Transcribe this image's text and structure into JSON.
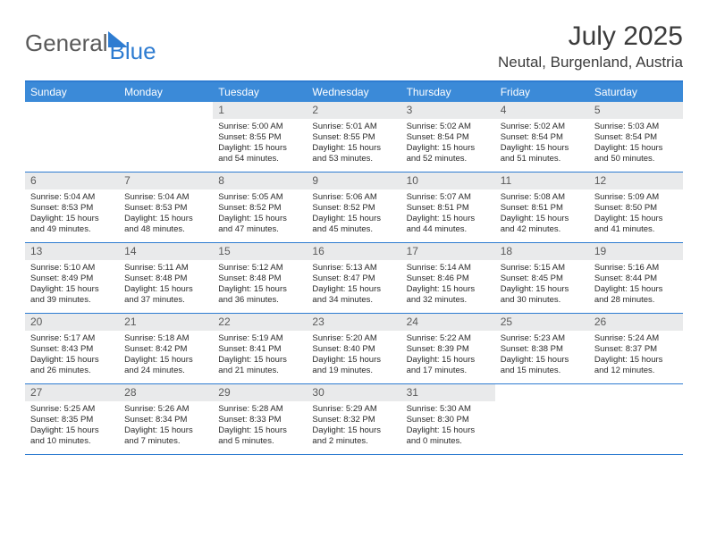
{
  "brand": {
    "text1": "General",
    "text2": "Blue"
  },
  "title": "July 2025",
  "location": "Neutal, Burgenland, Austria",
  "colors": {
    "accent": "#2e7cd1",
    "header_bg": "#3b8ad8",
    "daynum_bg": "#e9eaeb"
  },
  "day_names": [
    "Sunday",
    "Monday",
    "Tuesday",
    "Wednesday",
    "Thursday",
    "Friday",
    "Saturday"
  ],
  "weeks": [
    [
      null,
      null,
      {
        "n": "1",
        "sr": "Sunrise: 5:00 AM",
        "ss": "Sunset: 8:55 PM",
        "dl": "Daylight: 15 hours and 54 minutes."
      },
      {
        "n": "2",
        "sr": "Sunrise: 5:01 AM",
        "ss": "Sunset: 8:55 PM",
        "dl": "Daylight: 15 hours and 53 minutes."
      },
      {
        "n": "3",
        "sr": "Sunrise: 5:02 AM",
        "ss": "Sunset: 8:54 PM",
        "dl": "Daylight: 15 hours and 52 minutes."
      },
      {
        "n": "4",
        "sr": "Sunrise: 5:02 AM",
        "ss": "Sunset: 8:54 PM",
        "dl": "Daylight: 15 hours and 51 minutes."
      },
      {
        "n": "5",
        "sr": "Sunrise: 5:03 AM",
        "ss": "Sunset: 8:54 PM",
        "dl": "Daylight: 15 hours and 50 minutes."
      }
    ],
    [
      {
        "n": "6",
        "sr": "Sunrise: 5:04 AM",
        "ss": "Sunset: 8:53 PM",
        "dl": "Daylight: 15 hours and 49 minutes."
      },
      {
        "n": "7",
        "sr": "Sunrise: 5:04 AM",
        "ss": "Sunset: 8:53 PM",
        "dl": "Daylight: 15 hours and 48 minutes."
      },
      {
        "n": "8",
        "sr": "Sunrise: 5:05 AM",
        "ss": "Sunset: 8:52 PM",
        "dl": "Daylight: 15 hours and 47 minutes."
      },
      {
        "n": "9",
        "sr": "Sunrise: 5:06 AM",
        "ss": "Sunset: 8:52 PM",
        "dl": "Daylight: 15 hours and 45 minutes."
      },
      {
        "n": "10",
        "sr": "Sunrise: 5:07 AM",
        "ss": "Sunset: 8:51 PM",
        "dl": "Daylight: 15 hours and 44 minutes."
      },
      {
        "n": "11",
        "sr": "Sunrise: 5:08 AM",
        "ss": "Sunset: 8:51 PM",
        "dl": "Daylight: 15 hours and 42 minutes."
      },
      {
        "n": "12",
        "sr": "Sunrise: 5:09 AM",
        "ss": "Sunset: 8:50 PM",
        "dl": "Daylight: 15 hours and 41 minutes."
      }
    ],
    [
      {
        "n": "13",
        "sr": "Sunrise: 5:10 AM",
        "ss": "Sunset: 8:49 PM",
        "dl": "Daylight: 15 hours and 39 minutes."
      },
      {
        "n": "14",
        "sr": "Sunrise: 5:11 AM",
        "ss": "Sunset: 8:48 PM",
        "dl": "Daylight: 15 hours and 37 minutes."
      },
      {
        "n": "15",
        "sr": "Sunrise: 5:12 AM",
        "ss": "Sunset: 8:48 PM",
        "dl": "Daylight: 15 hours and 36 minutes."
      },
      {
        "n": "16",
        "sr": "Sunrise: 5:13 AM",
        "ss": "Sunset: 8:47 PM",
        "dl": "Daylight: 15 hours and 34 minutes."
      },
      {
        "n": "17",
        "sr": "Sunrise: 5:14 AM",
        "ss": "Sunset: 8:46 PM",
        "dl": "Daylight: 15 hours and 32 minutes."
      },
      {
        "n": "18",
        "sr": "Sunrise: 5:15 AM",
        "ss": "Sunset: 8:45 PM",
        "dl": "Daylight: 15 hours and 30 minutes."
      },
      {
        "n": "19",
        "sr": "Sunrise: 5:16 AM",
        "ss": "Sunset: 8:44 PM",
        "dl": "Daylight: 15 hours and 28 minutes."
      }
    ],
    [
      {
        "n": "20",
        "sr": "Sunrise: 5:17 AM",
        "ss": "Sunset: 8:43 PM",
        "dl": "Daylight: 15 hours and 26 minutes."
      },
      {
        "n": "21",
        "sr": "Sunrise: 5:18 AM",
        "ss": "Sunset: 8:42 PM",
        "dl": "Daylight: 15 hours and 24 minutes."
      },
      {
        "n": "22",
        "sr": "Sunrise: 5:19 AM",
        "ss": "Sunset: 8:41 PM",
        "dl": "Daylight: 15 hours and 21 minutes."
      },
      {
        "n": "23",
        "sr": "Sunrise: 5:20 AM",
        "ss": "Sunset: 8:40 PM",
        "dl": "Daylight: 15 hours and 19 minutes."
      },
      {
        "n": "24",
        "sr": "Sunrise: 5:22 AM",
        "ss": "Sunset: 8:39 PM",
        "dl": "Daylight: 15 hours and 17 minutes."
      },
      {
        "n": "25",
        "sr": "Sunrise: 5:23 AM",
        "ss": "Sunset: 8:38 PM",
        "dl": "Daylight: 15 hours and 15 minutes."
      },
      {
        "n": "26",
        "sr": "Sunrise: 5:24 AM",
        "ss": "Sunset: 8:37 PM",
        "dl": "Daylight: 15 hours and 12 minutes."
      }
    ],
    [
      {
        "n": "27",
        "sr": "Sunrise: 5:25 AM",
        "ss": "Sunset: 8:35 PM",
        "dl": "Daylight: 15 hours and 10 minutes."
      },
      {
        "n": "28",
        "sr": "Sunrise: 5:26 AM",
        "ss": "Sunset: 8:34 PM",
        "dl": "Daylight: 15 hours and 7 minutes."
      },
      {
        "n": "29",
        "sr": "Sunrise: 5:28 AM",
        "ss": "Sunset: 8:33 PM",
        "dl": "Daylight: 15 hours and 5 minutes."
      },
      {
        "n": "30",
        "sr": "Sunrise: 5:29 AM",
        "ss": "Sunset: 8:32 PM",
        "dl": "Daylight: 15 hours and 2 minutes."
      },
      {
        "n": "31",
        "sr": "Sunrise: 5:30 AM",
        "ss": "Sunset: 8:30 PM",
        "dl": "Daylight: 15 hours and 0 minutes."
      },
      null,
      null
    ]
  ]
}
